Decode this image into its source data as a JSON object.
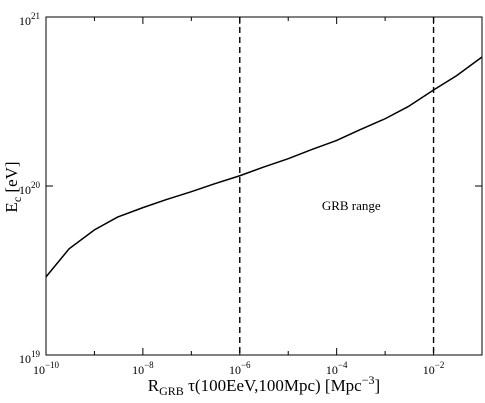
{
  "chart_data": {
    "type": "line",
    "xscale": "log",
    "yscale": "log",
    "xlim": [
      1e-10,
      0.1
    ],
    "ylim": [
      1e+19,
      1e+21
    ],
    "x_ticks": [
      {
        "base": "10",
        "exp": "−10",
        "value": 1e-10
      },
      {
        "base": "10",
        "exp": "−8",
        "value": 1e-08
      },
      {
        "base": "10",
        "exp": "−6",
        "value": 1e-06
      },
      {
        "base": "10",
        "exp": "−4",
        "value": 0.0001
      },
      {
        "base": "10",
        "exp": "−2",
        "value": 0.01
      }
    ],
    "y_ticks": [
      {
        "base": "10",
        "exp": "19",
        "value": 1e+19
      },
      {
        "base": "10",
        "exp": "20",
        "value": 1e+20
      },
      {
        "base": "10",
        "exp": "21",
        "value": 1e+21
      }
    ],
    "xlabel": {
      "main": "R",
      "sub": "GRB",
      "rest": " τ(100EeV,100Mpc) [Mpc",
      "sup": "−3",
      "end": "]"
    },
    "ylabel": {
      "main": "E",
      "sub": "c",
      "rest": " [eV]"
    },
    "series": [
      {
        "x": [
          1e-10,
          3e-10,
          1e-09,
          3e-09,
          1e-08,
          3e-08,
          1e-07,
          3e-07,
          1e-06,
          3e-06,
          1e-05,
          3e-05,
          0.0001,
          0.0003,
          0.001,
          0.003,
          0.01,
          0.03,
          0.1
        ],
        "y": [
          2.9e+19,
          4.25e+19,
          5.5e+19,
          6.55e+19,
          7.45e+19,
          8.3e+19,
          9.25e+19,
          1.03e+20,
          1.15e+20,
          1.29e+20,
          1.45e+20,
          1.64e+20,
          1.86e+20,
          2.15e+20,
          2.5e+20,
          2.95e+20,
          3.7e+20,
          4.5e+20,
          5.8e+20
        ]
      }
    ],
    "vlines": [
      1e-06,
      0.01
    ],
    "annotation": {
      "text": "GRB range",
      "x": 0.0002,
      "y": 7.2e+19
    },
    "grid": false
  }
}
